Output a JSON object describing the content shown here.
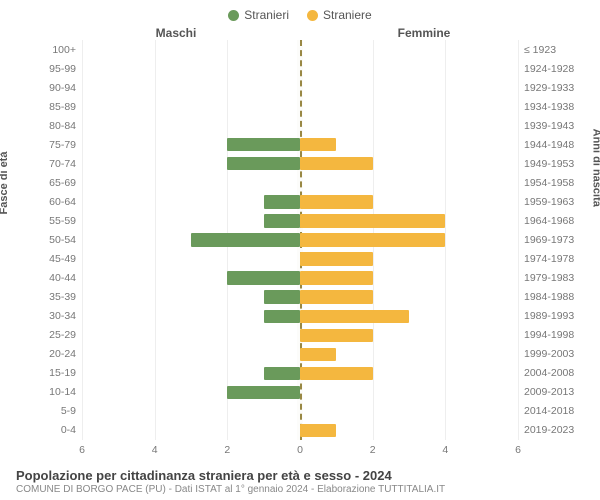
{
  "legend": {
    "male": {
      "label": "Stranieri",
      "color": "#6a9a5b"
    },
    "female": {
      "label": "Straniere",
      "color": "#f4b73f"
    }
  },
  "headers": {
    "left": "Maschi",
    "right": "Femmine"
  },
  "axis": {
    "left_title": "Fasce di età",
    "right_title": "Anni di nascita"
  },
  "xaxis": {
    "max": 6,
    "ticks_left": [
      6,
      4,
      2,
      0
    ],
    "ticks_right": [
      0,
      2,
      4,
      6
    ]
  },
  "styling": {
    "grid_color": "#eee",
    "center_dash_color": "#998844",
    "center_fill_color": "#fcfcfa",
    "background": "#ffffff",
    "label_color": "#777",
    "font_size_labels": 10.5,
    "bar_height_pct": 70
  },
  "rows": [
    {
      "age": "100+",
      "years": "≤ 1923",
      "m": 0,
      "f": 0
    },
    {
      "age": "95-99",
      "years": "1924-1928",
      "m": 0,
      "f": 0
    },
    {
      "age": "90-94",
      "years": "1929-1933",
      "m": 0,
      "f": 0
    },
    {
      "age": "85-89",
      "years": "1934-1938",
      "m": 0,
      "f": 0
    },
    {
      "age": "80-84",
      "years": "1939-1943",
      "m": 0,
      "f": 0
    },
    {
      "age": "75-79",
      "years": "1944-1948",
      "m": 2,
      "f": 1
    },
    {
      "age": "70-74",
      "years": "1949-1953",
      "m": 2,
      "f": 2
    },
    {
      "age": "65-69",
      "years": "1954-1958",
      "m": 0,
      "f": 0
    },
    {
      "age": "60-64",
      "years": "1959-1963",
      "m": 1,
      "f": 2
    },
    {
      "age": "55-59",
      "years": "1964-1968",
      "m": 1,
      "f": 4
    },
    {
      "age": "50-54",
      "years": "1969-1973",
      "m": 3,
      "f": 4
    },
    {
      "age": "45-49",
      "years": "1974-1978",
      "m": 0,
      "f": 2
    },
    {
      "age": "40-44",
      "years": "1979-1983",
      "m": 2,
      "f": 2
    },
    {
      "age": "35-39",
      "years": "1984-1988",
      "m": 1,
      "f": 2
    },
    {
      "age": "30-34",
      "years": "1989-1993",
      "m": 1,
      "f": 3
    },
    {
      "age": "25-29",
      "years": "1994-1998",
      "m": 0,
      "f": 2
    },
    {
      "age": "20-24",
      "years": "1999-2003",
      "m": 0,
      "f": 1
    },
    {
      "age": "15-19",
      "years": "2004-2008",
      "m": 1,
      "f": 2
    },
    {
      "age": "10-14",
      "years": "2009-2013",
      "m": 2,
      "f": 0
    },
    {
      "age": "5-9",
      "years": "2014-2018",
      "m": 0,
      "f": 0
    },
    {
      "age": "0-4",
      "years": "2019-2023",
      "m": 0,
      "f": 1
    }
  ],
  "footer": {
    "title": "Popolazione per cittadinanza straniera per età e sesso - 2024",
    "subtitle": "COMUNE DI BORGO PACE (PU) - Dati ISTAT al 1° gennaio 2024 - Elaborazione TUTTITALIA.IT"
  }
}
